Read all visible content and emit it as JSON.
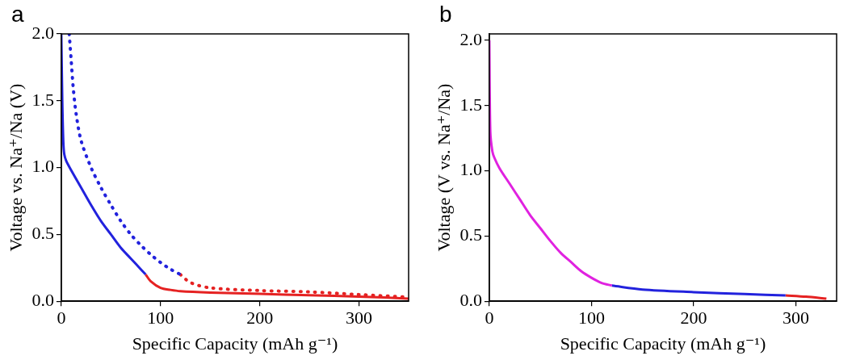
{
  "chart_data": [
    {
      "type": "line",
      "panel_label": "a",
      "x_label": "Specific Capacity (mAh g⁻¹)",
      "y_label": "Voltage vs. Na⁺/Na (V)",
      "xlim": [
        0,
        350
      ],
      "xticks": [
        0,
        100,
        200,
        300
      ],
      "ylim": [
        0,
        2.0
      ],
      "yticks": [
        {
          "value": 0,
          "label": "0.0"
        },
        0.5,
        {
          "value": 1,
          "label": "1.0"
        },
        1.5,
        {
          "value": 2,
          "label": "2.0"
        }
      ],
      "grid": false,
      "series": [
        {
          "color": "#2222dd",
          "line_style": "solid",
          "x": [
            0,
            1,
            2,
            3,
            5,
            10,
            20,
            30,
            40,
            50,
            60,
            70,
            80,
            85
          ],
          "values": [
            2.0,
            1.5,
            1.2,
            1.1,
            1.05,
            0.98,
            0.85,
            0.72,
            0.6,
            0.5,
            0.4,
            0.32,
            0.24,
            0.2
          ]
        },
        {
          "color": "#e52222",
          "line_style": "solid",
          "x": [
            85,
            90,
            100,
            110,
            120,
            150,
            200,
            250,
            300,
            350
          ],
          "values": [
            0.2,
            0.15,
            0.1,
            0.085,
            0.075,
            0.065,
            0.055,
            0.045,
            0.035,
            0.02
          ]
        },
        {
          "color": "#2222dd",
          "line_style": "dotted",
          "x": [
            8,
            10,
            12,
            15,
            20,
            30,
            40,
            50,
            60,
            70,
            80,
            90,
            100,
            110,
            120
          ],
          "values": [
            2.0,
            1.8,
            1.6,
            1.4,
            1.2,
            1.0,
            0.85,
            0.72,
            0.6,
            0.5,
            0.42,
            0.35,
            0.29,
            0.24,
            0.2
          ]
        },
        {
          "color": "#e52222",
          "line_style": "dotted",
          "x": [
            120,
            130,
            150,
            200,
            250,
            300,
            350
          ],
          "values": [
            0.2,
            0.14,
            0.1,
            0.08,
            0.07,
            0.05,
            0.03
          ]
        }
      ]
    },
    {
      "type": "line",
      "panel_label": "b",
      "x_label": "Specific Capacity (mAh g⁻¹)",
      "y_label": "Voltage (V vs. Na⁺/Na)",
      "xlim": [
        0,
        340
      ],
      "xticks": [
        0,
        100,
        200,
        300
      ],
      "ylim": [
        0,
        2.05
      ],
      "yticks": [
        {
          "value": 0,
          "label": "0.0"
        },
        0.5,
        {
          "value": 1,
          "label": "1.0"
        },
        1.5,
        {
          "value": 2,
          "label": "2.0"
        }
      ],
      "grid": false,
      "series": [
        {
          "color": "#e022e0",
          "line_style": "solid",
          "x": [
            0,
            1,
            3,
            5,
            10,
            20,
            30,
            40,
            50,
            60,
            70,
            80,
            90,
            100,
            110,
            120
          ],
          "values": [
            2.0,
            1.3,
            1.15,
            1.1,
            1.02,
            0.9,
            0.78,
            0.66,
            0.56,
            0.46,
            0.37,
            0.3,
            0.23,
            0.18,
            0.14,
            0.12
          ]
        },
        {
          "color": "#2222dd",
          "line_style": "solid",
          "x": [
            120,
            150,
            200,
            250,
            290
          ],
          "values": [
            0.12,
            0.09,
            0.07,
            0.055,
            0.045
          ]
        },
        {
          "color": "#e52222",
          "line_style": "solid",
          "x": [
            290,
            310,
            330
          ],
          "values": [
            0.045,
            0.035,
            0.02
          ]
        }
      ]
    }
  ]
}
